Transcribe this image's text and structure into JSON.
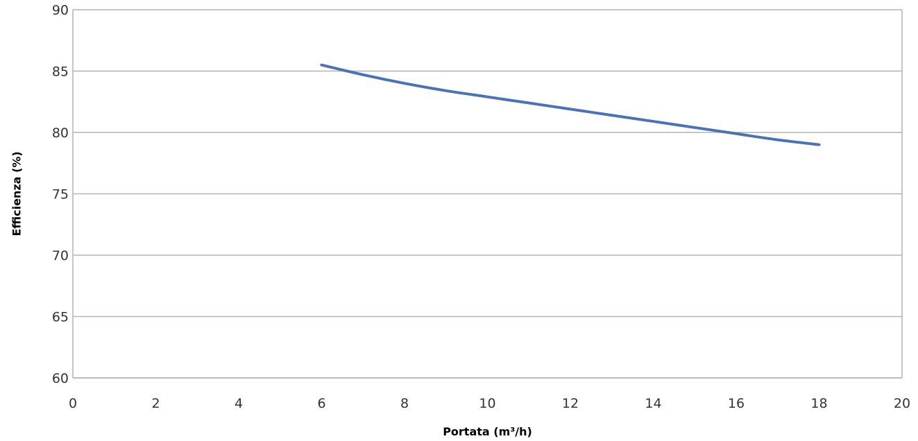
{
  "chart_data": {
    "type": "line",
    "title": "",
    "xlabel": "Portata (m³/h)",
    "ylabel": "Efficienza (%)",
    "xlim": [
      0,
      20
    ],
    "ylim": [
      60,
      90
    ],
    "x_ticks": [
      0,
      2,
      4,
      6,
      8,
      10,
      12,
      14,
      16,
      18,
      20
    ],
    "y_ticks": [
      60,
      65,
      70,
      75,
      80,
      85,
      90
    ],
    "x_tick_labels": [
      "0",
      "2",
      "4",
      "6",
      "8",
      "10",
      "12",
      "14",
      "16",
      "18",
      "20"
    ],
    "y_tick_labels": [
      "60",
      "65",
      "70",
      "75",
      "80",
      "85",
      "90"
    ],
    "grid": true,
    "legend": "none",
    "series": [
      {
        "color": "#4a72b8",
        "x": [
          6,
          7,
          8,
          9,
          10,
          11,
          12,
          13,
          14,
          15,
          16,
          17,
          18
        ],
        "y": [
          85.5,
          84.7,
          84.0,
          83.4,
          82.9,
          82.4,
          81.9,
          81.4,
          80.9,
          80.4,
          79.9,
          79.4,
          79.0
        ]
      }
    ]
  }
}
